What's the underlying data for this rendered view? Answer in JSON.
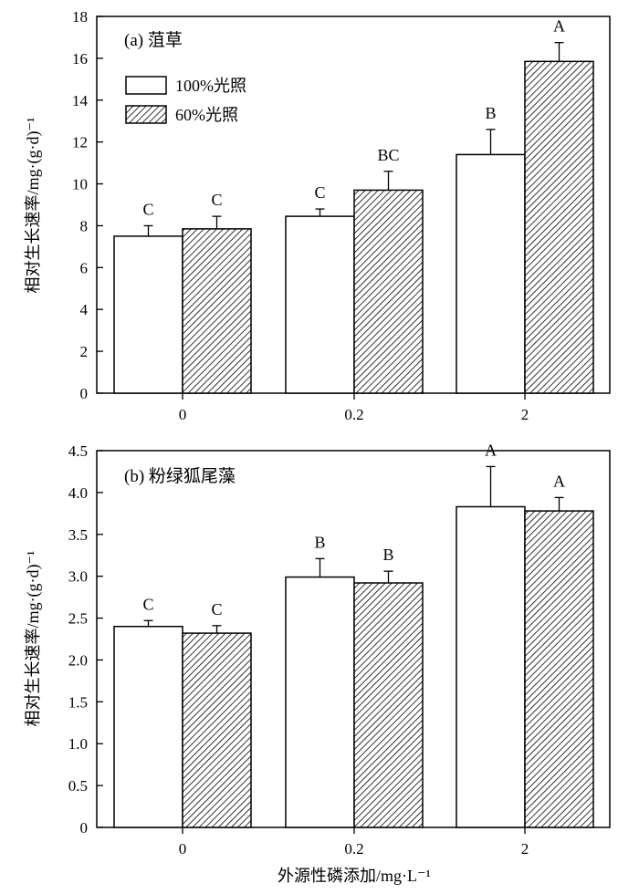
{
  "chart_data": [
    {
      "type": "bar",
      "title": "(a) 菹草",
      "ylabel": "相对生长速率/mg·(g·d)⁻¹",
      "xlabel": "",
      "ylim": [
        0,
        18
      ],
      "yticks": [
        0,
        2,
        4,
        6,
        8,
        10,
        12,
        14,
        16,
        18
      ],
      "categories": [
        "0",
        "0.2",
        "2"
      ],
      "legend_position": "top-left",
      "grid": false,
      "series": [
        {
          "name": "100%光照",
          "pattern": "open",
          "values": [
            7.5,
            8.45,
            11.4
          ],
          "errors": [
            0.5,
            0.35,
            1.2
          ],
          "letters": [
            "C",
            "C",
            "B"
          ]
        },
        {
          "name": "60%光照",
          "pattern": "hatched",
          "values": [
            7.85,
            9.7,
            15.85
          ],
          "errors": [
            0.6,
            0.9,
            0.9
          ],
          "letters": [
            "C",
            "BC",
            "A"
          ]
        }
      ]
    },
    {
      "type": "bar",
      "title": "(b) 粉绿狐尾藻",
      "ylabel": "相对生长速率/mg·(g·d)⁻¹",
      "xlabel": "外源性磷添加/mg·L⁻¹",
      "ylim": [
        0,
        4.5
      ],
      "yticks": [
        "0",
        "0.5",
        "1.0",
        "1.5",
        "2.0",
        "2.5",
        "3.0",
        "3.5",
        "4.0",
        "4.5"
      ],
      "categories": [
        "0",
        "0.2",
        "2"
      ],
      "grid": false,
      "series": [
        {
          "name": "100%光照",
          "pattern": "open",
          "values": [
            2.4,
            2.99,
            3.83
          ],
          "errors": [
            0.07,
            0.22,
            0.48
          ],
          "letters": [
            "C",
            "B",
            "A"
          ]
        },
        {
          "name": "60%光照",
          "pattern": "hatched",
          "values": [
            2.32,
            2.92,
            3.78
          ],
          "errors": [
            0.09,
            0.14,
            0.16
          ],
          "letters": [
            "C",
            "B",
            "A"
          ]
        }
      ]
    }
  ]
}
